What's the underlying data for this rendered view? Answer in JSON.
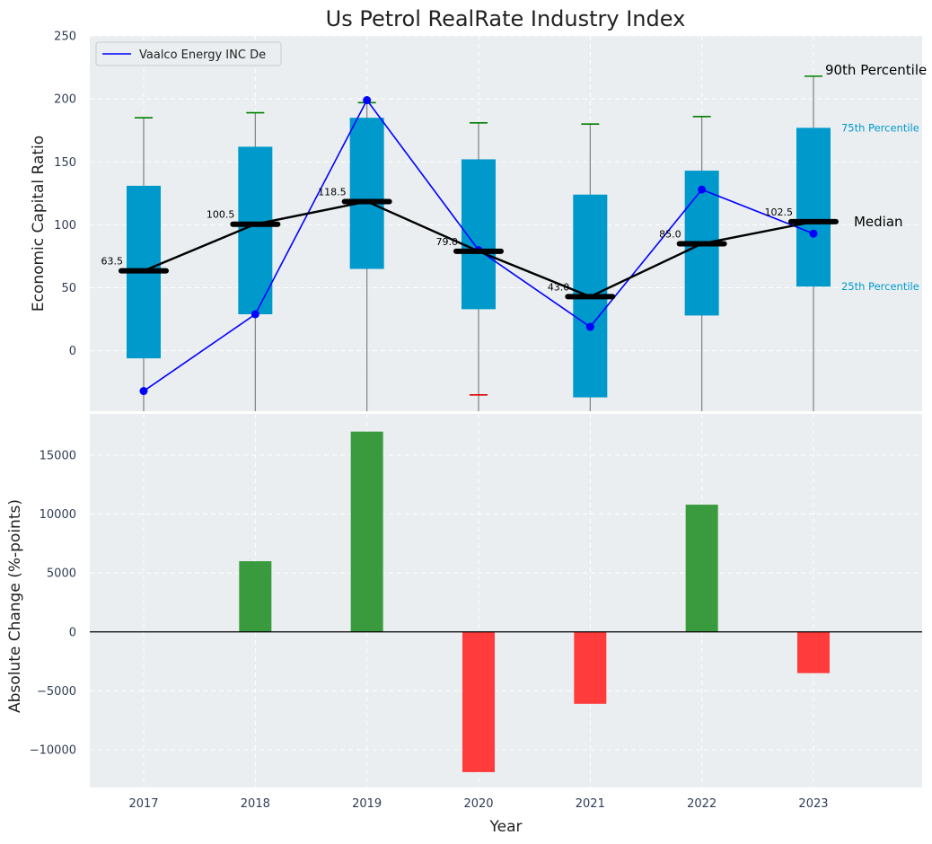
{
  "title": "Us Petrol RealRate Industry Index",
  "colors": {
    "background": "#eaeef0",
    "box": "#0099cc",
    "median": "#000000",
    "company": "#0000ff",
    "whisker": "#808080",
    "cap_up": "#008000",
    "cap_down": "#dd0000",
    "bar_pos": "#3a9b3e",
    "bar_neg": "#ff3b3b"
  },
  "chart_data": [
    {
      "type": "box",
      "ylabel": "Economic Capital Ratio",
      "ylim": [
        -48,
        250
      ],
      "yticks": [
        0,
        50,
        100,
        150,
        200,
        250
      ],
      "categories": [
        "2017",
        "2018",
        "2019",
        "2020",
        "2021",
        "2022",
        "2023"
      ],
      "p25": [
        -6,
        29,
        65,
        33,
        -37,
        28,
        51
      ],
      "p75": [
        131,
        162,
        185,
        152,
        124,
        143,
        177
      ],
      "median": [
        63.5,
        100.5,
        118.5,
        79.0,
        43.0,
        85.0,
        102.5
      ],
      "median_labels": [
        "63.5",
        "100.5",
        "118.5",
        "79.0",
        "43.0",
        "85.0",
        "102.5"
      ],
      "p90": [
        185,
        189,
        197,
        181,
        180,
        186,
        218
      ],
      "p10": [
        null,
        null,
        null,
        -35,
        null,
        null,
        null
      ],
      "series": [
        {
          "name": "Vaalco Energy INC De",
          "values": [
            -32,
            29,
            199,
            80,
            19,
            128,
            93
          ]
        }
      ],
      "annotations": {
        "p90": "90th Percentile",
        "p75": "75th Percentile",
        "median": "Median",
        "p25": "25th Percentile"
      },
      "legend": "top-left",
      "grid": true
    },
    {
      "type": "bar",
      "xlabel": "Year",
      "ylabel": "Absolute Change (%-points)",
      "ylim": [
        -13200,
        18500
      ],
      "yticks": [
        -10000,
        -5000,
        0,
        5000,
        10000,
        15000
      ],
      "ytick_labels": [
        "−10000",
        "−5000",
        "0",
        "5000",
        "10000",
        "15000"
      ],
      "categories": [
        "2017",
        "2018",
        "2019",
        "2020",
        "2021",
        "2022",
        "2023"
      ],
      "values": [
        0,
        6000,
        17000,
        -11900,
        -6100,
        10800,
        -3500
      ],
      "grid": true
    }
  ]
}
